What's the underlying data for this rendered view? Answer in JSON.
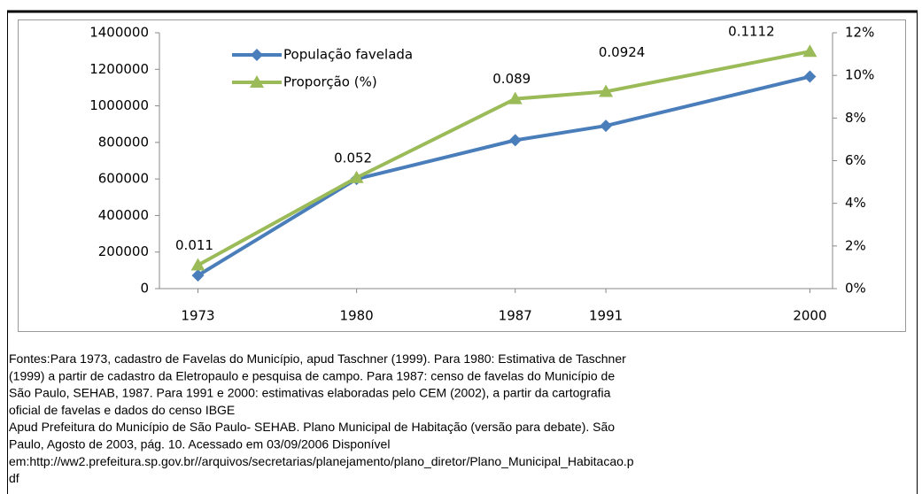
{
  "chart_data": {
    "type": "line",
    "x": [
      1973,
      1980,
      1987,
      1991,
      2000
    ],
    "xlim": [
      1971.3,
      2001
    ],
    "xticks": [
      1973,
      1980,
      1987,
      1991,
      2000
    ],
    "ylim": [
      0,
      1400000
    ],
    "yticks": [
      0,
      200000,
      400000,
      600000,
      800000,
      1000000,
      1200000,
      1400000
    ],
    "y2lim": [
      0,
      12
    ],
    "y2ticks": [
      {
        "value": 0,
        "label": "0%"
      },
      {
        "value": 2,
        "label": "2%"
      },
      {
        "value": 4,
        "label": "4%"
      },
      {
        "value": 6,
        "label": "6%"
      },
      {
        "value": 8,
        "label": "8%"
      },
      {
        "value": 10,
        "label": "10%"
      },
      {
        "value": 12,
        "label": "12%"
      }
    ],
    "legend": "top-left",
    "series": [
      {
        "name": "População favelada",
        "color": "#4a7ebb",
        "marker": "diamond",
        "values": [
          72000,
          600000,
          812000,
          891000,
          1160000
        ]
      },
      {
        "name": "Proporção (%)",
        "color": "#9bbb59",
        "marker": "triangle",
        "axis": "y2",
        "values": [
          1.1,
          5.2,
          8.9,
          9.24,
          11.12
        ],
        "value_labels": [
          "0.011",
          "0.052",
          "0.089",
          "0.0924",
          "0.1112"
        ]
      }
    ],
    "caption": [
      "Fontes:Para 1973, cadastro de Favelas do Município, apud Taschner (1999). Para 1980: Estimativa de Taschner",
      "(1999) a partir de cadastro da Eletropaulo e pesquisa de campo. Para 1987: censo de favelas do Município de",
      "São Paulo, SEHAB, 1987. Para 1991 e 2000: estimativas elaboradas pelo CEM (2002), a partir da cartografia",
      "oficial de favelas e dados do censo IBGE",
      "Apud Prefeitura do Município de São Paulo- SEHAB. Plano Municipal de Habitação (versão para debate). São",
      "Paulo, Agosto de 2003, pág. 10.  Acessado em 03/09/2006 Disponível",
      "em:http://ww2.prefeitura.sp.gov.br//arquivos/secretarias/planejamento/plano_diretor/Plano_Municipal_Habitacao.p",
      "df"
    ]
  }
}
